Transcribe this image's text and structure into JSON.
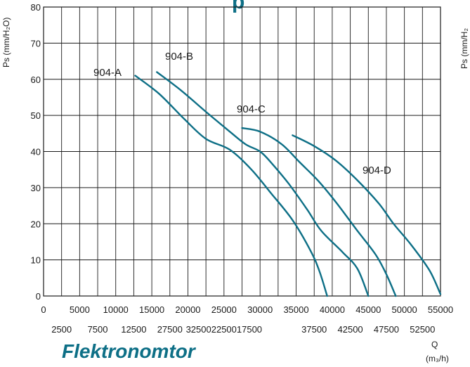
{
  "colors": {
    "curve": "#0d6f86",
    "grid": "#1a1a1a",
    "text": "#1a1a1a",
    "accent": "#0d6f86"
  },
  "header_fragment": "p",
  "footer_fragment": "Flektronomtor",
  "chart_data": {
    "type": "line",
    "ylabel": "Ps (mm/H₂O)",
    "ylabel_right": "Ps (mm/H₂",
    "xlabel": "Q",
    "xunit": "(m₃/h)",
    "xlim": [
      0,
      55000
    ],
    "ylim": [
      0,
      80
    ],
    "y_ticks": [
      "0",
      "10",
      "20",
      "30",
      "40",
      "50",
      "60",
      "70",
      "80"
    ],
    "x_ticks_major": [
      "0",
      "5000",
      "10000",
      "15000",
      "20000",
      "25000",
      "30000",
      "35000",
      "40000",
      "45000",
      "50000",
      "55000"
    ],
    "x_ticks_minor": [
      "2500",
      "7500",
      "12500",
      "27500",
      "325002250017500",
      "37500",
      "42500",
      "47500",
      "52500"
    ],
    "grid": true,
    "series": [
      {
        "name": "904-A",
        "points": [
          [
            12700,
            61
          ],
          [
            16000,
            56
          ],
          [
            19500,
            49
          ],
          [
            22500,
            43.5
          ],
          [
            25800,
            40.5
          ],
          [
            28800,
            35
          ],
          [
            31500,
            28.5
          ],
          [
            34500,
            21
          ],
          [
            37000,
            12.5
          ],
          [
            38200,
            7
          ],
          [
            39300,
            0
          ]
        ]
      },
      {
        "name": "904-B",
        "points": [
          [
            15700,
            62
          ],
          [
            19000,
            57
          ],
          [
            22500,
            51
          ],
          [
            25800,
            45.5
          ],
          [
            28000,
            42
          ],
          [
            30000,
            40
          ],
          [
            31500,
            37
          ],
          [
            34000,
            31
          ],
          [
            36500,
            24
          ],
          [
            38500,
            18
          ],
          [
            41500,
            12
          ],
          [
            43500,
            7.5
          ],
          [
            45000,
            0
          ]
        ]
      },
      {
        "name": "904-C",
        "points": [
          [
            27500,
            46.5
          ],
          [
            30000,
            45.5
          ],
          [
            33000,
            42
          ],
          [
            35500,
            37
          ],
          [
            38000,
            32
          ],
          [
            40500,
            26
          ],
          [
            43500,
            18
          ],
          [
            46000,
            11.5
          ],
          [
            47500,
            6
          ],
          [
            48800,
            0
          ]
        ]
      },
      {
        "name": "904-D",
        "points": [
          [
            34500,
            44.5
          ],
          [
            37500,
            41.5
          ],
          [
            40500,
            37.5
          ],
          [
            43500,
            32
          ],
          [
            46500,
            25.5
          ],
          [
            48500,
            20
          ],
          [
            51000,
            14
          ],
          [
            53500,
            7
          ],
          [
            55000,
            0.5
          ]
        ]
      }
    ]
  }
}
